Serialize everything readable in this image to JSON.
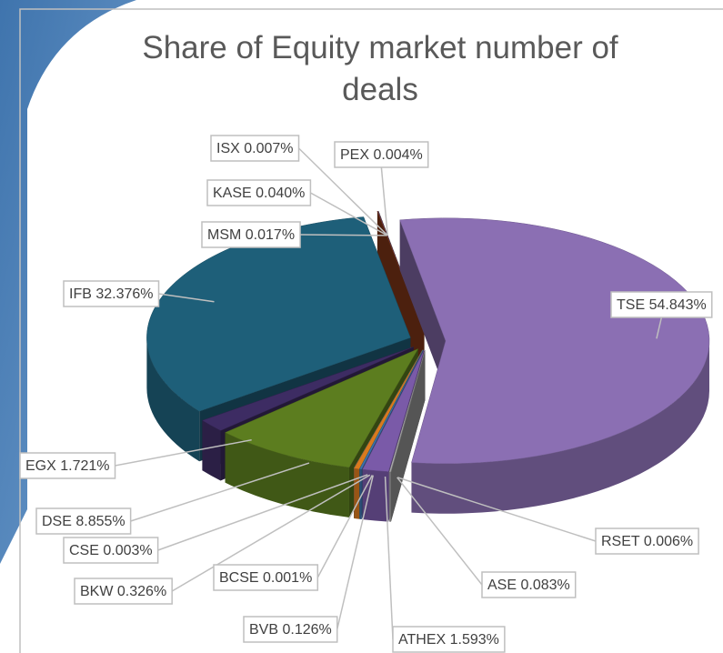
{
  "chart_data": {
    "type": "pie",
    "title": "Share of Equity market number of deals",
    "categories": [
      "TSE",
      "RSET",
      "ASE",
      "ATHEX",
      "BVB",
      "BCSE",
      "BKW",
      "CSE",
      "DSE",
      "EGX",
      "IFB",
      "MSM",
      "KASE",
      "ISX",
      "PEX"
    ],
    "values": [
      54.843,
      0.006,
      0.083,
      1.593,
      0.126,
      0.001,
      0.326,
      0.003,
      8.855,
      1.721,
      32.376,
      0.017,
      0.04,
      0.007,
      0.004
    ],
    "value_labels": [
      "54.843%",
      "0.006%",
      "0.083%",
      "1.593%",
      "0.126%",
      "0.001%",
      "0.326%",
      "0.003%",
      "8.855%",
      "1.721%",
      "32.376%",
      "0.017%",
      "0.040%",
      "0.007%",
      "0.004%"
    ],
    "colors": [
      "#8b6fb3",
      "#9a9a9a",
      "#b0b0b0",
      "#7a5aa8",
      "#3f72ad",
      "#4f8f3a",
      "#d97a1e",
      "#6a8fc4",
      "#5c7d1f",
      "#3d2c63",
      "#1e5f79",
      "#8a3a1a",
      "#6b4a8c",
      "#4d6b2b",
      "#5a260a"
    ]
  }
}
